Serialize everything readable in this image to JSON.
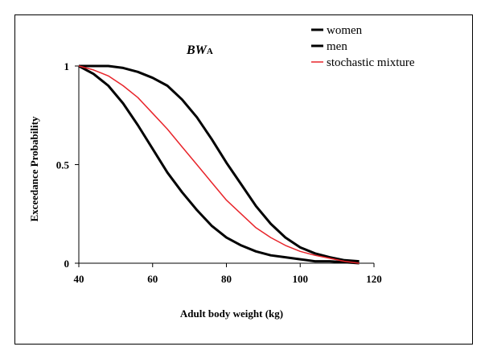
{
  "chart_data": {
    "type": "line",
    "title": "BW",
    "title_subscript": "A",
    "xlabel": "Adult body weight (kg)",
    "ylabel": "Exceedance Probability",
    "xlim": [
      40,
      120
    ],
    "ylim": [
      0,
      1
    ],
    "xticks": [
      40,
      60,
      80,
      100,
      120
    ],
    "yticks": [
      {
        "value": 0,
        "label": "0"
      },
      {
        "value": 0.5,
        "label": "0.5"
      },
      {
        "value": 1,
        "label": "1"
      }
    ],
    "grid": false,
    "legend_position": "top-right",
    "series": [
      {
        "name": "women",
        "color": "#000000",
        "points": [
          [
            40,
            1.0
          ],
          [
            44,
            0.96
          ],
          [
            48,
            0.9
          ],
          [
            52,
            0.81
          ],
          [
            56,
            0.7
          ],
          [
            60,
            0.58
          ],
          [
            64,
            0.46
          ],
          [
            68,
            0.36
          ],
          [
            72,
            0.27
          ],
          [
            76,
            0.19
          ],
          [
            80,
            0.13
          ],
          [
            84,
            0.09
          ],
          [
            88,
            0.06
          ],
          [
            92,
            0.04
          ],
          [
            96,
            0.03
          ],
          [
            100,
            0.02
          ],
          [
            104,
            0.01
          ],
          [
            108,
            0.01
          ],
          [
            112,
            0.005
          ],
          [
            116,
            0.0
          ]
        ]
      },
      {
        "name": "men",
        "color": "#000000",
        "points": [
          [
            40,
            1.0
          ],
          [
            44,
            1.0
          ],
          [
            48,
            1.0
          ],
          [
            52,
            0.99
          ],
          [
            56,
            0.97
          ],
          [
            60,
            0.94
          ],
          [
            64,
            0.9
          ],
          [
            68,
            0.83
          ],
          [
            72,
            0.74
          ],
          [
            76,
            0.63
          ],
          [
            80,
            0.51
          ],
          [
            84,
            0.4
          ],
          [
            88,
            0.29
          ],
          [
            92,
            0.2
          ],
          [
            96,
            0.13
          ],
          [
            100,
            0.08
          ],
          [
            104,
            0.05
          ],
          [
            108,
            0.03
          ],
          [
            112,
            0.015
          ],
          [
            116,
            0.01
          ]
        ]
      },
      {
        "name": "stochastic mixture",
        "color": "#e8242a",
        "points": [
          [
            40,
            1.0
          ],
          [
            44,
            0.98
          ],
          [
            48,
            0.95
          ],
          [
            52,
            0.9
          ],
          [
            56,
            0.84
          ],
          [
            60,
            0.76
          ],
          [
            64,
            0.68
          ],
          [
            68,
            0.59
          ],
          [
            72,
            0.5
          ],
          [
            76,
            0.41
          ],
          [
            80,
            0.32
          ],
          [
            84,
            0.25
          ],
          [
            88,
            0.18
          ],
          [
            92,
            0.13
          ],
          [
            96,
            0.09
          ],
          [
            100,
            0.06
          ],
          [
            104,
            0.04
          ],
          [
            108,
            0.025
          ],
          [
            112,
            0.01
          ],
          [
            116,
            0.0
          ]
        ]
      }
    ]
  }
}
